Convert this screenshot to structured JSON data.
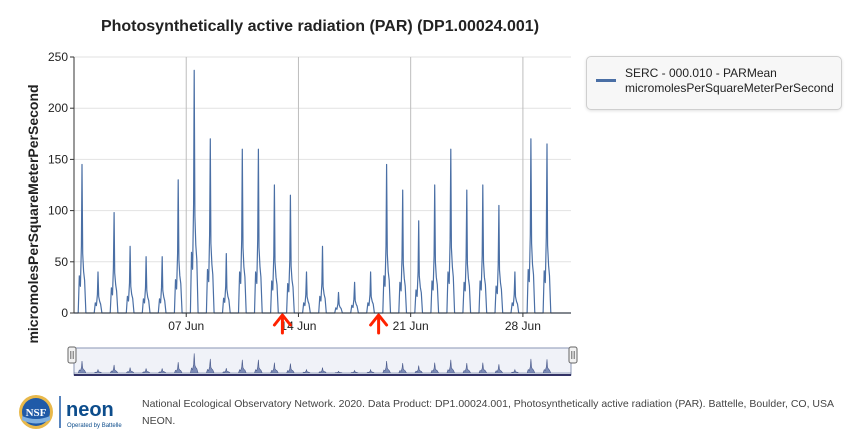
{
  "chart_data": {
    "type": "line",
    "title": "Photosynthetically active radiation (PAR) (DP1.00024.001)",
    "ylabel": "micromolesPerSquareMeterPerSecond",
    "xlabel": "",
    "ylim": [
      0,
      250
    ],
    "xlim": [
      "2020-05-31",
      "2020-07-01"
    ],
    "yticks": [
      0,
      50,
      100,
      150,
      200,
      250
    ],
    "xticks": [
      {
        "label": "07 Jun",
        "date": "2020-06-07"
      },
      {
        "label": "14 Jun",
        "date": "2020-06-14"
      },
      {
        "label": "21 Jun",
        "date": "2020-06-21"
      },
      {
        "label": "28 Jun",
        "date": "2020-06-28"
      }
    ],
    "grid": true,
    "legend_position": "right",
    "series": [
      {
        "name": "SERC - 000.010 - PARMean micromolesPerSquareMeterPerSecond",
        "color": "#4a6fa5",
        "daily_max": [
          145,
          40,
          98,
          65,
          55,
          55,
          130,
          237,
          170,
          58,
          160,
          160,
          125,
          115,
          40,
          65,
          20,
          30,
          40,
          145,
          120,
          90,
          125,
          160,
          120,
          125,
          105,
          40,
          170,
          165
        ],
        "daily_dates": [
          "2020-05-31",
          "2020-06-01",
          "2020-06-02",
          "2020-06-03",
          "2020-06-04",
          "2020-06-05",
          "2020-06-06",
          "2020-06-07",
          "2020-06-08",
          "2020-06-09",
          "2020-06-10",
          "2020-06-11",
          "2020-06-12",
          "2020-06-13",
          "2020-06-14",
          "2020-06-15",
          "2020-06-16",
          "2020-06-17",
          "2020-06-18",
          "2020-06-19",
          "2020-06-20",
          "2020-06-21",
          "2020-06-22",
          "2020-06-23",
          "2020-06-24",
          "2020-06-25",
          "2020-06-26",
          "2020-06-27",
          "2020-06-28",
          "2020-06-29"
        ]
      }
    ]
  },
  "legend": {
    "line1": "SERC - 000.010 - PARMean",
    "line2": "micromolesPerSquareMeterPerSecond"
  },
  "navigator": {
    "handle_icon": "drag-handle-icon"
  },
  "footer": {
    "nsf_logo_text": "NSF",
    "neon_logo_text": "neon",
    "neon_tagline": "Operated by Battelle",
    "citation": "National Ecological Observatory Network. 2020. Data Product: DP1.00024.001, Photosynthetically active radiation (PAR). Battelle, Boulder, CO, USA NEON."
  },
  "annotations": {
    "arrow_color": "#ff2200",
    "arrow_dates": [
      "2020-06-13",
      "2020-06-19"
    ]
  }
}
